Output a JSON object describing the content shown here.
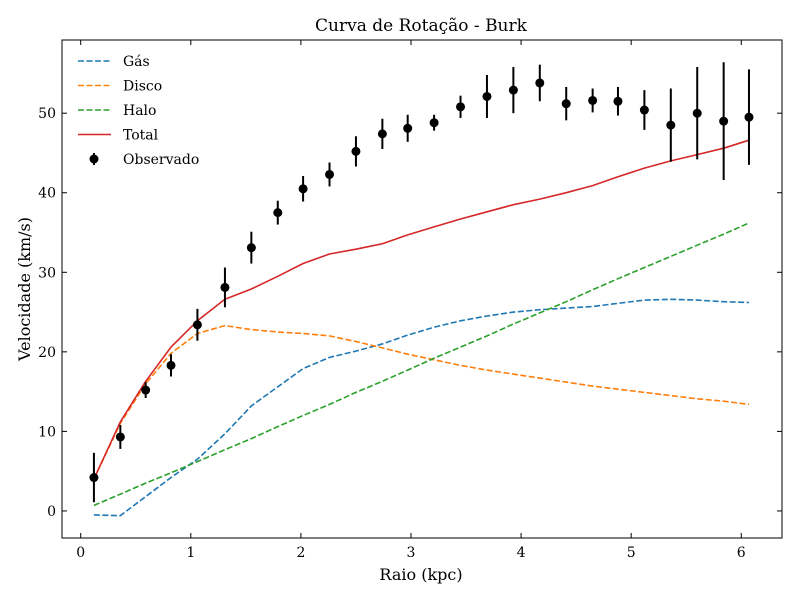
{
  "chart_data": {
    "type": "line",
    "title": "Curva de Rotação - Burk",
    "xlabel": "Raio (kpc)",
    "ylabel": "Velocidade (km/s)",
    "xlim": [
      -0.17,
      6.37
    ],
    "ylim": [
      -3.4,
      59.2
    ],
    "xticks": [
      0,
      1,
      2,
      3,
      4,
      5,
      6
    ],
    "yticks": [
      0,
      10,
      20,
      30,
      40,
      50
    ],
    "grid": false,
    "legend": "top-left",
    "series": [
      {
        "name": "Gás",
        "color": "#1f77b4",
        "style": "dashed",
        "x": [
          0.12,
          0.36,
          0.59,
          0.82,
          1.06,
          1.31,
          1.55,
          1.79,
          2.02,
          2.26,
          2.5,
          2.74,
          2.97,
          3.21,
          3.45,
          3.69,
          3.93,
          4.17,
          4.41,
          4.65,
          4.88,
          5.12,
          5.36,
          5.6,
          5.84,
          6.07
        ],
        "y": [
          -0.5,
          -0.6,
          1.8,
          4.2,
          6.5,
          9.7,
          13.2,
          15.6,
          17.9,
          19.3,
          20.1,
          21.0,
          22.1,
          23.1,
          23.9,
          24.5,
          25.0,
          25.3,
          25.5,
          25.7,
          26.1,
          26.5,
          26.6,
          26.5,
          26.3,
          26.2
        ]
      },
      {
        "name": "Disco",
        "color": "#ff7f0e",
        "style": "dashed",
        "x": [
          0.12,
          0.36,
          0.59,
          0.82,
          1.06,
          1.31,
          1.55,
          1.79,
          2.02,
          2.26,
          2.5,
          2.74,
          2.97,
          3.21,
          3.45,
          3.69,
          3.93,
          4.17,
          4.41,
          4.65,
          4.88,
          5.12,
          5.36,
          5.6,
          5.84,
          6.07
        ],
        "y": [
          4.0,
          11.0,
          16.0,
          19.8,
          22.3,
          23.3,
          22.8,
          22.5,
          22.3,
          22.0,
          21.3,
          20.5,
          19.7,
          19.0,
          18.3,
          17.7,
          17.2,
          16.7,
          16.2,
          15.7,
          15.3,
          14.9,
          14.5,
          14.1,
          13.8,
          13.4
        ]
      },
      {
        "name": "Halo",
        "color": "#2ca02c",
        "style": "dashed",
        "x": [
          0.12,
          0.36,
          0.59,
          0.82,
          1.06,
          1.31,
          1.55,
          1.79,
          2.02,
          2.26,
          2.5,
          2.74,
          2.97,
          3.21,
          3.45,
          3.69,
          3.93,
          4.17,
          4.41,
          4.65,
          4.88,
          5.12,
          5.36,
          5.6,
          5.84,
          6.07
        ],
        "y": [
          0.7,
          2.1,
          3.5,
          4.8,
          6.2,
          7.7,
          9.1,
          10.6,
          12.0,
          13.4,
          14.9,
          16.3,
          17.7,
          19.2,
          20.6,
          22.0,
          23.5,
          24.9,
          26.3,
          27.8,
          29.2,
          30.6,
          32.0,
          33.4,
          34.8,
          36.2
        ]
      },
      {
        "name": "Total",
        "color": "#d62728",
        "style": "solid",
        "x": [
          0.12,
          0.36,
          0.59,
          0.82,
          1.06,
          1.31,
          1.55,
          1.79,
          2.02,
          2.26,
          2.5,
          2.74,
          2.97,
          3.21,
          3.45,
          3.69,
          3.93,
          4.17,
          4.41,
          4.65,
          4.88,
          5.12,
          5.36,
          5.6,
          5.84,
          6.07
        ],
        "y": [
          4.0,
          11.2,
          16.3,
          20.6,
          23.9,
          26.6,
          27.9,
          29.5,
          31.1,
          32.3,
          32.9,
          33.6,
          34.7,
          35.7,
          36.7,
          37.6,
          38.5,
          39.2,
          40.0,
          40.9,
          42.0,
          43.1,
          44.0,
          44.8,
          45.6,
          46.6
        ]
      }
    ],
    "observed": {
      "name": "Observado",
      "color": "#000000",
      "x": [
        0.12,
        0.36,
        0.59,
        0.82,
        1.06,
        1.31,
        1.55,
        1.79,
        2.02,
        2.26,
        2.5,
        2.74,
        2.97,
        3.21,
        3.45,
        3.69,
        3.93,
        4.17,
        4.41,
        4.65,
        4.88,
        5.12,
        5.36,
        5.6,
        5.84,
        6.07
      ],
      "y": [
        4.2,
        9.3,
        15.2,
        18.3,
        23.4,
        28.1,
        33.1,
        37.5,
        40.5,
        42.3,
        45.2,
        47.4,
        48.1,
        48.8,
        50.8,
        52.1,
        52.9,
        53.8,
        51.2,
        51.6,
        51.5,
        50.4,
        48.5,
        50.0,
        49.0,
        49.5
      ],
      "err": [
        3.1,
        1.5,
        1.0,
        1.4,
        2.0,
        2.5,
        2.0,
        1.5,
        1.6,
        1.5,
        1.9,
        1.9,
        1.7,
        1.0,
        1.4,
        2.7,
        2.9,
        2.3,
        2.1,
        1.5,
        1.8,
        2.5,
        4.6,
        5.8,
        7.4,
        6.0
      ]
    }
  }
}
